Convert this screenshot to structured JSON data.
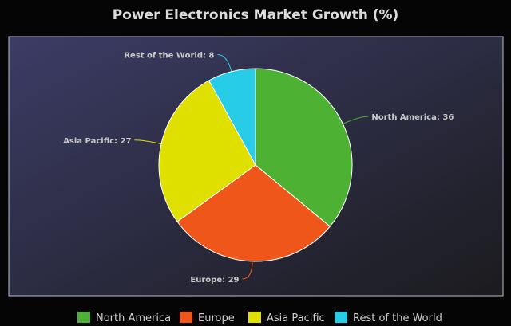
{
  "chart_data": {
    "type": "pie",
    "title": "Power Electronics Market Growth (%)",
    "categories": [
      "North America",
      "Europe",
      "Asia Pacific",
      "Rest of the World"
    ],
    "values": [
      36,
      29,
      27,
      8
    ],
    "colors": [
      "#4db133",
      "#ee5719",
      "#dfdf00",
      "#27cde6"
    ],
    "slice_labels": [
      "North America: 36",
      "Europe: 29",
      "Asia Pacific: 27",
      "Rest of the World: 8"
    ],
    "legend": {
      "position": "bottom",
      "entries": [
        "North America",
        "Europe",
        "Asia Pacific",
        "Rest of the World"
      ]
    },
    "start_angle": "12 o'clock",
    "direction": "clockwise"
  },
  "colors": {
    "page_background": "#050505",
    "plot_gradient_start": "#3c3c66",
    "plot_gradient_end": "#1b1b1e",
    "plot_border": "#bdbdcf",
    "slice_border": "#ffffff",
    "title_color": "#dcdcdc",
    "label_color": "#c9c9c9"
  }
}
